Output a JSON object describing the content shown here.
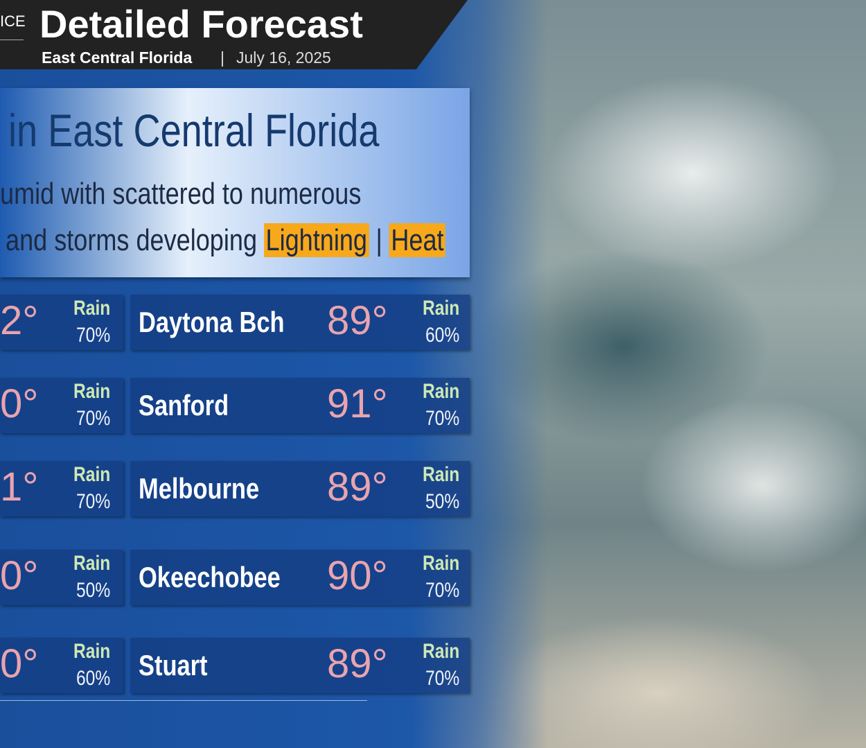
{
  "header": {
    "office": "ICE",
    "title": "Detailed Forecast",
    "region": "East Central Florida",
    "separator": "|",
    "date": "July 16, 2025"
  },
  "summary": {
    "headline": "in East Central Florida",
    "line1": "umid with scattered to numerous",
    "line2": "and storms developing",
    "hazards": [
      "Lightning",
      "Heat"
    ],
    "hazard_separator": "|"
  },
  "rows": [
    {
      "left": {
        "temp": "2°",
        "rain_label": "Rain",
        "rain": "70%"
      },
      "right": {
        "city": "Daytona Bch",
        "temp": "89°",
        "rain_label": "Rain",
        "rain": "60%"
      }
    },
    {
      "left": {
        "temp": "0°",
        "rain_label": "Rain",
        "rain": "70%"
      },
      "right": {
        "city": "Sanford",
        "temp": "91°",
        "rain_label": "Rain",
        "rain": "70%"
      }
    },
    {
      "left": {
        "temp": "1°",
        "rain_label": "Rain",
        "rain": "70%"
      },
      "right": {
        "city": "Melbourne",
        "temp": "89°",
        "rain_label": "Rain",
        "rain": "50%"
      }
    },
    {
      "left": {
        "temp": "0°",
        "rain_label": "Rain",
        "rain": "50%"
      },
      "right": {
        "city": "Okeechobee",
        "temp": "90°",
        "rain_label": "Rain",
        "rain": "70%"
      }
    },
    {
      "left": {
        "temp": "0°",
        "rain_label": "Rain",
        "rain": "60%"
      },
      "right": {
        "city": "Stuart",
        "temp": "89°",
        "rain_label": "Rain",
        "rain": "70%"
      }
    }
  ]
}
